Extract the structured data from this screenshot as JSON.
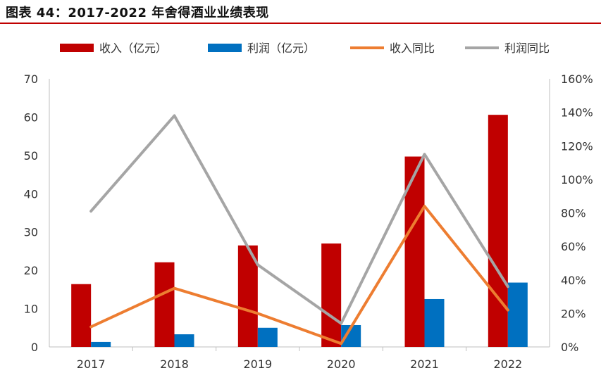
{
  "title": "图表 44：2017-2022 年舍得酒业业绩表现",
  "colors": {
    "revenue": "#c00000",
    "profit": "#0070c0",
    "revenue_yoy": "#ed7d31",
    "profit_yoy": "#a5a5a5",
    "title_rule": "#c00000"
  },
  "chart_data": {
    "type": "bar",
    "categories": [
      "2017",
      "2018",
      "2019",
      "2020",
      "2021",
      "2022"
    ],
    "series": [
      {
        "name": "收入（亿元）",
        "kind": "bar",
        "axis": "left",
        "values": [
          16.4,
          22.1,
          26.5,
          27.0,
          49.7,
          60.6
        ]
      },
      {
        "name": "利润（亿元）",
        "kind": "bar",
        "axis": "left",
        "values": [
          1.3,
          3.3,
          5.0,
          5.7,
          12.5,
          16.8
        ]
      },
      {
        "name": "收入同比",
        "kind": "line",
        "axis": "right",
        "values": [
          12,
          35,
          20,
          2,
          84,
          22
        ]
      },
      {
        "name": "利润同比",
        "kind": "line",
        "axis": "right",
        "values": [
          81,
          138,
          49,
          14,
          115,
          36
        ]
      }
    ],
    "ylim": [
      0,
      70
    ],
    "y_ticks": [
      "0",
      "10",
      "20",
      "30",
      "40",
      "50",
      "60",
      "70"
    ],
    "y2lim": [
      0,
      160
    ],
    "y2_ticks": [
      "0%",
      "20%",
      "40%",
      "60%",
      "80%",
      "100%",
      "120%",
      "140%",
      "160%"
    ],
    "legend_position": "top",
    "grid": false
  }
}
